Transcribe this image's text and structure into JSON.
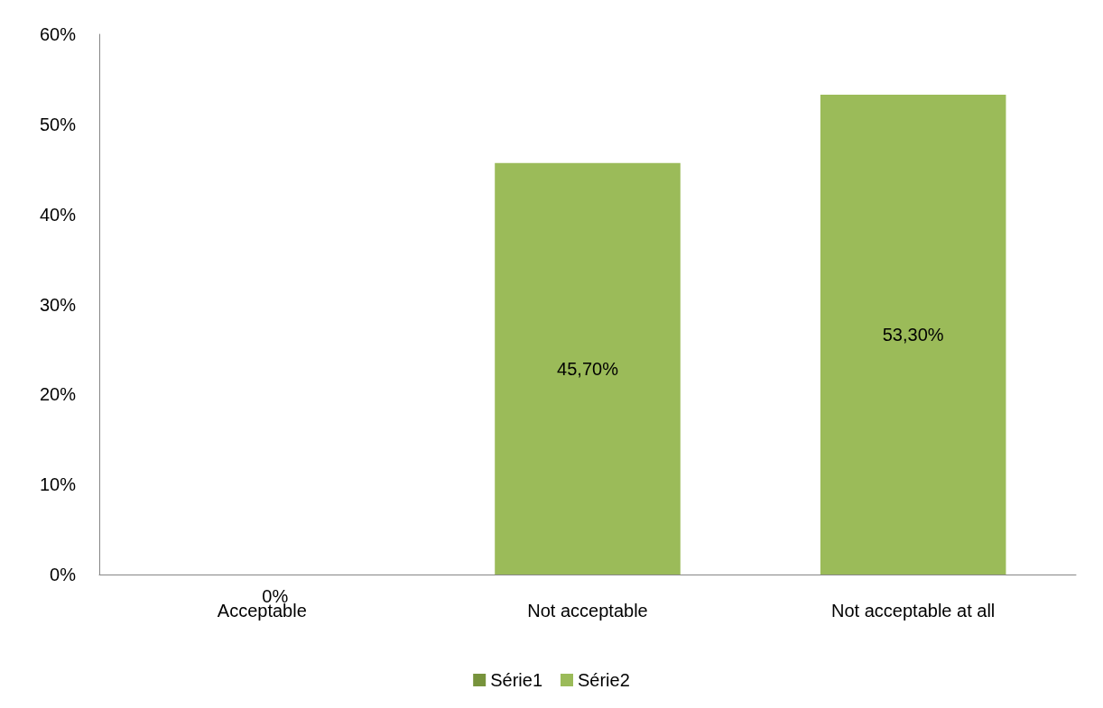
{
  "chart_data": {
    "type": "bar",
    "stacked": true,
    "categories": [
      "Acceptable",
      "Not acceptable",
      "Not acceptable at all"
    ],
    "series": [
      {
        "name": "Série1",
        "color": "#77933c",
        "values": [
          0,
          0,
          0
        ]
      },
      {
        "name": "Série2",
        "color": "#9bbb59",
        "values": [
          0,
          45.7,
          53.3
        ],
        "value_labels": [
          "0%",
          "45,70%",
          "53,30%"
        ]
      }
    ],
    "ylim": [
      0,
      60
    ],
    "yticks": [
      {
        "value": 0,
        "label": "0%"
      },
      {
        "value": 10,
        "label": "10%"
      },
      {
        "value": 20,
        "label": "20%"
      },
      {
        "value": 30,
        "label": "30%"
      },
      {
        "value": 40,
        "label": "40%"
      },
      {
        "value": 50,
        "label": "50%"
      },
      {
        "value": 60,
        "label": "60%"
      }
    ],
    "grid": false,
    "legend": "bottom"
  }
}
